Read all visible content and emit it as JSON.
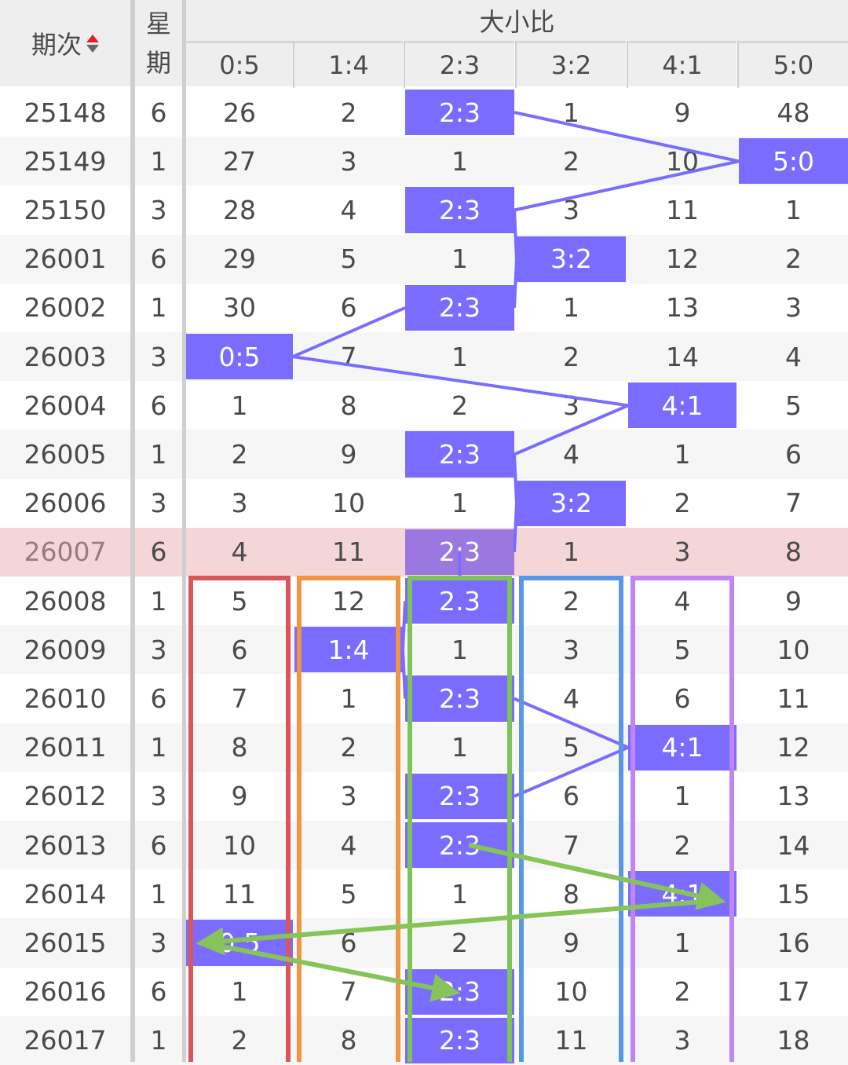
{
  "header": {
    "period_label": "期次",
    "weekday_label_top": "星",
    "weekday_label_bottom": "期",
    "group_label": "大小比",
    "ratio_columns": [
      "0:5",
      "1:4",
      "2:3",
      "3:2",
      "4:1",
      "5:0"
    ]
  },
  "colors": {
    "hit": "#7a6cff",
    "highlight_row": "#f4d6d8",
    "header_bg": "#eeeeee",
    "box_col0": "#d9575b",
    "box_col1": "#ef9545",
    "box_col2": "#7fc15b",
    "box_col3": "#5a96e6",
    "box_col4": "#c184f5",
    "arrows": "#86c45a"
  },
  "rows": [
    {
      "period": "25148",
      "week": "6",
      "cells": [
        "26",
        "2",
        "2:3",
        "1",
        "9",
        "48"
      ],
      "hit": 2
    },
    {
      "period": "25149",
      "week": "1",
      "cells": [
        "27",
        "3",
        "1",
        "2",
        "10",
        "5:0"
      ],
      "hit": 5
    },
    {
      "period": "25150",
      "week": "3",
      "cells": [
        "28",
        "4",
        "2:3",
        "3",
        "11",
        "1"
      ],
      "hit": 2
    },
    {
      "period": "26001",
      "week": "6",
      "cells": [
        "29",
        "5",
        "1",
        "3:2",
        "12",
        "2"
      ],
      "hit": 3
    },
    {
      "period": "26002",
      "week": "1",
      "cells": [
        "30",
        "6",
        "2:3",
        "1",
        "13",
        "3"
      ],
      "hit": 2
    },
    {
      "period": "26003",
      "week": "3",
      "cells": [
        "0:5",
        "7",
        "1",
        "2",
        "14",
        "4"
      ],
      "hit": 0
    },
    {
      "period": "26004",
      "week": "6",
      "cells": [
        "1",
        "8",
        "2",
        "3",
        "4:1",
        "5"
      ],
      "hit": 4
    },
    {
      "period": "26005",
      "week": "1",
      "cells": [
        "2",
        "9",
        "2:3",
        "4",
        "1",
        "6"
      ],
      "hit": 2
    },
    {
      "period": "26006",
      "week": "3",
      "cells": [
        "3",
        "10",
        "1",
        "3:2",
        "2",
        "7"
      ],
      "hit": 3
    },
    {
      "period": "26007",
      "week": "6",
      "cells": [
        "4",
        "11",
        "2:3",
        "1",
        "3",
        "8"
      ],
      "hit": 2,
      "highlight": true
    },
    {
      "period": "26008",
      "week": "1",
      "cells": [
        "5",
        "12",
        "2:3",
        "2",
        "4",
        "9"
      ],
      "hit": 2
    },
    {
      "period": "26009",
      "week": "3",
      "cells": [
        "6",
        "1:4",
        "1",
        "3",
        "5",
        "10"
      ],
      "hit": 1
    },
    {
      "period": "26010",
      "week": "6",
      "cells": [
        "7",
        "1",
        "2:3",
        "4",
        "6",
        "11"
      ],
      "hit": 2
    },
    {
      "period": "26011",
      "week": "1",
      "cells": [
        "8",
        "2",
        "1",
        "5",
        "4:1",
        "12"
      ],
      "hit": 4
    },
    {
      "period": "26012",
      "week": "3",
      "cells": [
        "9",
        "3",
        "2:3",
        "6",
        "1",
        "13"
      ],
      "hit": 2
    },
    {
      "period": "26013",
      "week": "6",
      "cells": [
        "10",
        "4",
        "2:3",
        "7",
        "2",
        "14"
      ],
      "hit": 2
    },
    {
      "period": "26014",
      "week": "1",
      "cells": [
        "11",
        "5",
        "1",
        "8",
        "4:1",
        "15"
      ],
      "hit": 4
    },
    {
      "period": "26015",
      "week": "3",
      "cells": [
        "0:5",
        "6",
        "2",
        "9",
        "1",
        "16"
      ],
      "hit": 0
    },
    {
      "period": "26016",
      "week": "6",
      "cells": [
        "1",
        "7",
        "2:3",
        "10",
        "2",
        "17"
      ],
      "hit": 2
    },
    {
      "period": "26017",
      "week": "1",
      "cells": [
        "2",
        "8",
        "2:3",
        "11",
        "3",
        "18"
      ],
      "hit": 2
    }
  ]
}
